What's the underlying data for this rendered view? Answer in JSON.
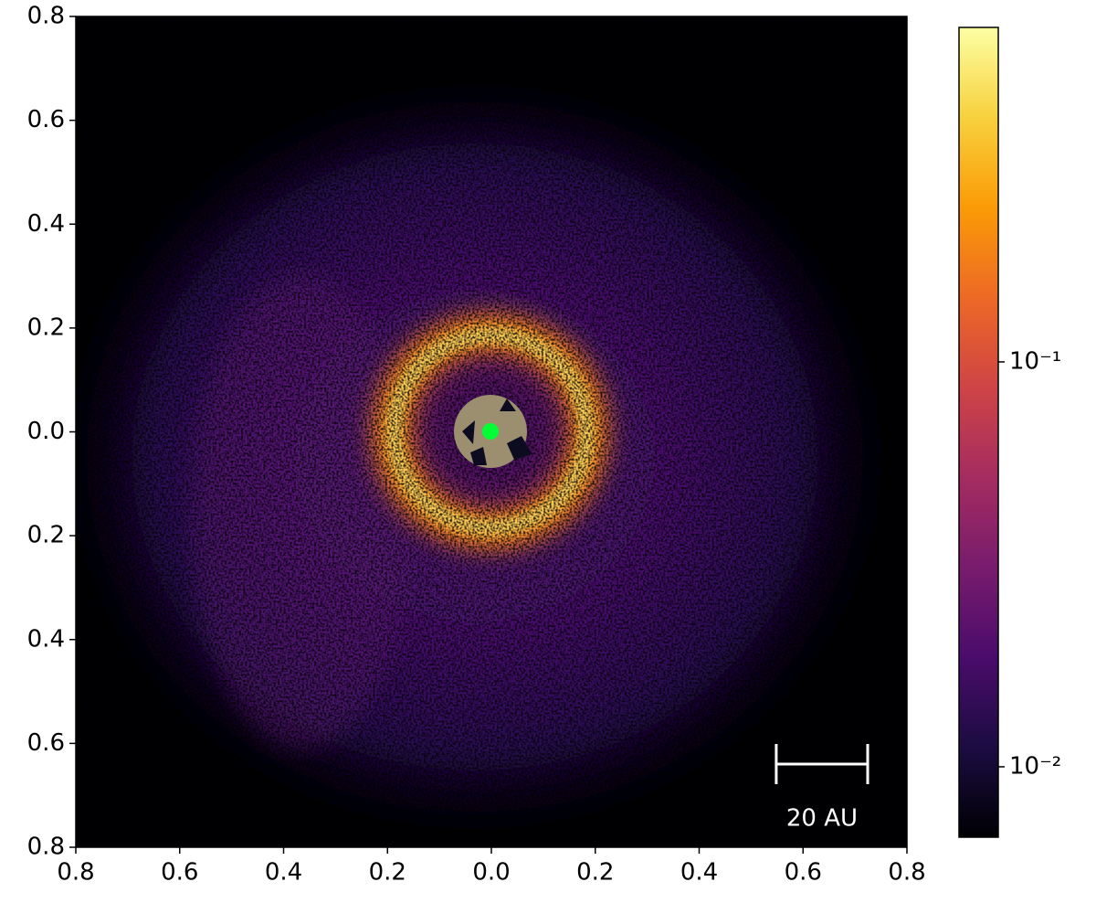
{
  "chart_data": {
    "type": "image",
    "xlim": [
      -0.8,
      0.8
    ],
    "ylim": [
      -0.8,
      0.8
    ],
    "xticks": [
      {
        "value": -0.8,
        "label": "0.8"
      },
      {
        "value": -0.6,
        "label": "0.6"
      },
      {
        "value": -0.4,
        "label": "0.4"
      },
      {
        "value": -0.2,
        "label": "0.2"
      },
      {
        "value": 0,
        "label": "0.0"
      },
      0.2,
      0.4,
      0.6,
      0.8
    ],
    "yticks": [
      {
        "value": -0.8,
        "label": "0.8"
      },
      {
        "value": -0.6,
        "label": "0.6"
      },
      {
        "value": -0.4,
        "label": "0.4"
      },
      {
        "value": -0.2,
        "label": "0.2"
      },
      {
        "value": 0,
        "label": "0.0"
      },
      0.2,
      0.4,
      0.6,
      0.8
    ],
    "colorbar": {
      "scale": "log",
      "clim": [
        0.0067,
        0.67
      ],
      "ticks": [
        {
          "value": 0.01,
          "label": "10⁻²"
        },
        {
          "value": 0.1,
          "label": "10⁻¹"
        }
      ],
      "colormap": [
        "#000004",
        "#1b0c41",
        "#4a0c6b",
        "#781c6d",
        "#a52c60",
        "#cf4446",
        "#ed6925",
        "#fb9b06",
        "#f7d13d",
        "#fcffa4"
      ]
    },
    "scale_bar": {
      "label": "20 AU",
      "length": 0.176
    }
  }
}
